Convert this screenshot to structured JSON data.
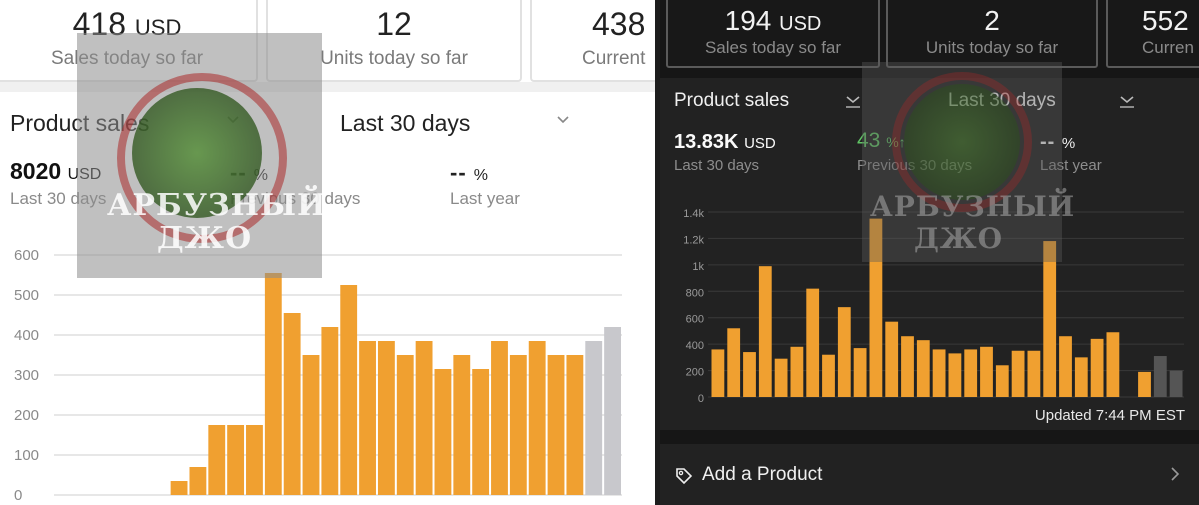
{
  "left": {
    "stats": [
      {
        "value": "418",
        "unit": "USD",
        "label": "Sales today so far"
      },
      {
        "value": "12",
        "unit": "",
        "label": "Units today so far"
      },
      {
        "value": "438",
        "unit": "",
        "label": "Current"
      }
    ],
    "dropdowns": {
      "metric": "Product sales",
      "period": "Last 30 days"
    },
    "metrics": {
      "total_value": "8020",
      "total_unit": "USD",
      "total_label": "Last 30 days",
      "prev_value": "--",
      "prev_pct": "%",
      "prev_label": "Previous 30 days",
      "year_value": "--",
      "year_pct": "%",
      "year_label": "Last year"
    },
    "watermark": {
      "line1": "АРБУЗНЫЙ",
      "line2": "ДЖО"
    }
  },
  "right": {
    "stats": [
      {
        "value": "194",
        "unit": "USD",
        "label": "Sales today so far"
      },
      {
        "value": "2",
        "unit": "",
        "label": "Units today so far"
      },
      {
        "value": "552",
        "unit": "",
        "label": "Curren"
      }
    ],
    "dropdowns": {
      "metric": "Product sales",
      "period": "Last 30 days"
    },
    "metrics": {
      "total_value": "13.83K",
      "total_unit": "USD",
      "total_label": "Last 30 days",
      "prev_value": "43",
      "prev_pct": "%↑",
      "prev_label": "Previous 30 days",
      "year_value": "--",
      "year_pct": "%",
      "year_label": "Last year"
    },
    "updated": "Updated 7:44 PM EST",
    "add_product": "Add a Product",
    "watermark": {
      "line1": "АРБУЗНЫЙ",
      "line2": "ДЖО"
    }
  },
  "colors": {
    "bar": "#f0a030",
    "bar_pending": "#c8c8cc",
    "bar_pending_dark": "#555555",
    "positive": "#5fc464"
  },
  "chart_data": [
    {
      "type": "bar",
      "ylim": [
        0,
        600
      ],
      "yticks": [
        "0",
        "100",
        "200",
        "300",
        "400",
        "500",
        "600"
      ],
      "values": [
        0,
        0,
        0,
        0,
        0,
        0,
        0,
        0,
        0,
        35,
        70,
        175,
        175,
        175,
        555,
        455,
        350,
        420,
        525,
        385,
        385,
        350,
        385,
        315,
        350,
        315,
        385,
        350,
        385,
        350,
        350,
        385,
        420
      ],
      "pending_from_index": 31,
      "grid": true
    },
    {
      "type": "bar",
      "ylim": [
        0,
        1400
      ],
      "yticks": [
        "0",
        "200",
        "400",
        "600",
        "800",
        "1k",
        "1.2k",
        "1.4k"
      ],
      "values": [
        360,
        520,
        340,
        990,
        290,
        380,
        820,
        320,
        680,
        370,
        1350,
        570,
        460,
        430,
        360,
        330,
        360,
        380,
        240,
        350,
        350,
        1180,
        460,
        300,
        440,
        490,
        0,
        190,
        310,
        200
      ],
      "pending_from_index": 28,
      "grid": true
    }
  ]
}
